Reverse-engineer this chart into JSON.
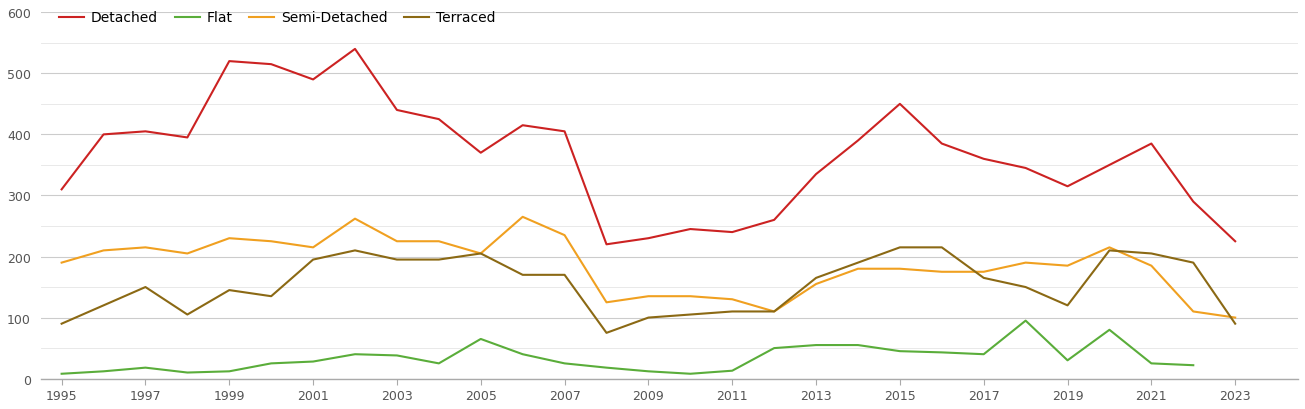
{
  "years": [
    1995,
    1996,
    1997,
    1998,
    1999,
    2000,
    2001,
    2002,
    2003,
    2004,
    2005,
    2006,
    2007,
    2008,
    2009,
    2010,
    2011,
    2012,
    2013,
    2014,
    2015,
    2016,
    2017,
    2018,
    2019,
    2020,
    2021,
    2022,
    2023,
    2024
  ],
  "detached": [
    310,
    400,
    405,
    395,
    520,
    515,
    490,
    540,
    440,
    425,
    370,
    415,
    405,
    220,
    230,
    245,
    240,
    260,
    335,
    390,
    450,
    385,
    360,
    345,
    315,
    350,
    385,
    290,
    225,
    null
  ],
  "flat": [
    8,
    12,
    18,
    10,
    12,
    25,
    28,
    40,
    38,
    25,
    65,
    40,
    25,
    18,
    12,
    8,
    13,
    50,
    55,
    55,
    45,
    43,
    40,
    95,
    30,
    80,
    25,
    22,
    null,
    null
  ],
  "semi_detached": [
    190,
    210,
    215,
    205,
    230,
    225,
    215,
    262,
    225,
    225,
    205,
    265,
    235,
    125,
    135,
    135,
    130,
    110,
    155,
    180,
    180,
    175,
    175,
    190,
    185,
    215,
    185,
    110,
    100,
    null
  ],
  "terraced": [
    90,
    120,
    150,
    105,
    145,
    135,
    195,
    210,
    195,
    195,
    205,
    170,
    170,
    75,
    100,
    105,
    110,
    110,
    165,
    190,
    215,
    215,
    165,
    150,
    120,
    210,
    205,
    190,
    90,
    null
  ],
  "colors": {
    "detached": "#cc2222",
    "flat": "#5aad3a",
    "semi_detached": "#f0a020",
    "terraced": "#8b6914"
  },
  "ylim": [
    0,
    600
  ],
  "major_yticks": [
    0,
    100,
    200,
    300,
    400,
    500,
    600
  ],
  "minor_yticks": [
    50,
    150,
    250,
    350,
    450,
    550
  ],
  "xtick_years": [
    1995,
    1997,
    1999,
    2001,
    2003,
    2005,
    2007,
    2009,
    2011,
    2013,
    2015,
    2017,
    2019,
    2021,
    2023
  ],
  "linewidth": 1.5,
  "background_color": "#ffffff",
  "major_grid_color": "#cccccc",
  "minor_grid_color": "#e5e5e5"
}
